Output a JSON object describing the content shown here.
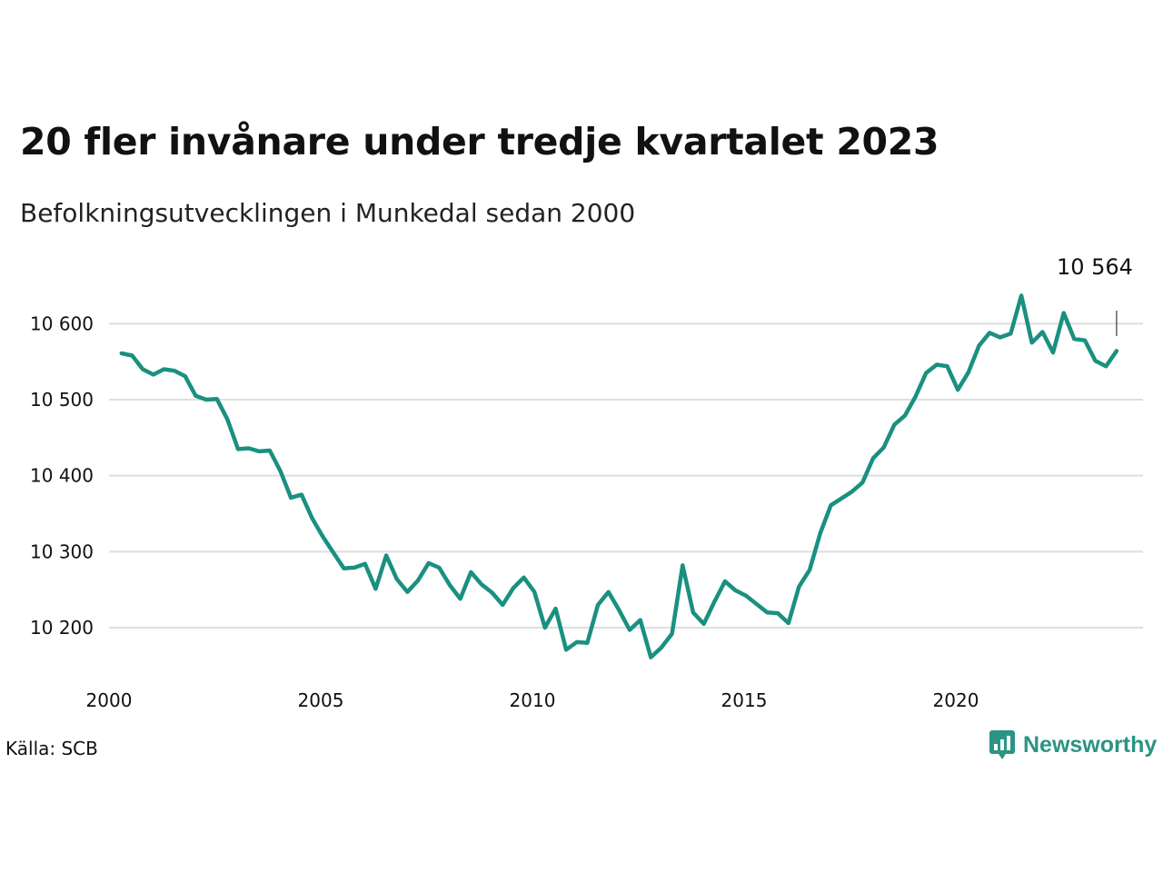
{
  "title": "20 fler invånare under tredje kvartalet 2023",
  "subtitle": "Befolkningsutvecklingen i Munkedal sedan 2000",
  "source": "Källa: SCB",
  "brand": {
    "name": "Newsworthy",
    "icon": "newsworthy-logo-icon",
    "color": "#2b9484"
  },
  "chart_data": {
    "type": "line",
    "color": "#1a9080",
    "grid": true,
    "ylim": [
      10140,
      10650
    ],
    "xlim": [
      2000,
      2024
    ],
    "yticks": [
      10200,
      10300,
      10400,
      10500,
      10600
    ],
    "ytick_labels": [
      "10 200",
      "10 300",
      "10 400",
      "10 500",
      "10 600"
    ],
    "xticks": [
      2000,
      2005,
      2010,
      2015,
      2020
    ],
    "xtick_labels": [
      "2000",
      "2005",
      "2010",
      "2015",
      "2020"
    ],
    "last_value_label": "10 564",
    "x": [
      2000.125,
      2000.375,
      2000.625,
      2000.875,
      2001.125,
      2001.375,
      2001.625,
      2001.875,
      2002.125,
      2002.375,
      2002.625,
      2002.875,
      2003.125,
      2003.375,
      2003.625,
      2003.875,
      2004.125,
      2004.375,
      2004.625,
      2004.875,
      2005.125,
      2005.375,
      2005.625,
      2005.875,
      2006.125,
      2006.375,
      2006.625,
      2006.875,
      2007.125,
      2007.375,
      2007.625,
      2007.875,
      2008.125,
      2008.375,
      2008.625,
      2008.875,
      2009.125,
      2009.375,
      2009.625,
      2009.875,
      2010.125,
      2010.375,
      2010.625,
      2010.875,
      2011.125,
      2011.375,
      2011.625,
      2011.875,
      2012.125,
      2012.375,
      2012.625,
      2012.875,
      2013.125,
      2013.375,
      2013.625,
      2013.875,
      2014.125,
      2014.375,
      2014.625,
      2014.875,
      2015.125,
      2015.375,
      2015.625,
      2015.875,
      2016.125,
      2016.375,
      2016.625,
      2016.875,
      2017.125,
      2017.375,
      2017.625,
      2017.875,
      2018.125,
      2018.375,
      2018.625,
      2018.875,
      2019.125,
      2019.375,
      2019.625,
      2019.875,
      2020.125,
      2020.375,
      2020.625,
      2020.875,
      2021.125,
      2021.375,
      2021.625,
      2021.875,
      2022.125,
      2022.375,
      2022.625,
      2022.875,
      2023.125,
      2023.375,
      2023.625
    ],
    "values": [
      10561,
      10558,
      10540,
      10533,
      10540,
      10538,
      10531,
      10505,
      10500,
      10501,
      10474,
      10435,
      10436,
      10432,
      10433,
      10406,
      10371,
      10375,
      10344,
      10320,
      10299,
      10278,
      10279,
      10284,
      10251,
      10295,
      10264,
      10247,
      10262,
      10285,
      10279,
      10256,
      10238,
      10273,
      10257,
      10246,
      10230,
      10252,
      10266,
      10247,
      10200,
      10225,
      10171,
      10181,
      10180,
      10230,
      10247,
      10223,
      10197,
      10210,
      10161,
      10174,
      10192,
      10282,
      10220,
      10205,
      10234,
      10261,
      10249,
      10242,
      10231,
      10220,
      10219,
      10206,
      10254,
      10276,
      10324,
      10361,
      10370,
      10379,
      10391,
      10423,
      10437,
      10467,
      10479,
      10504,
      10535,
      10546,
      10544,
      10513,
      10536,
      10571,
      10588,
      10582,
      10587,
      10637,
      10575,
      10589,
      10562,
      10614,
      10580,
      10578,
      10551,
      10544,
      10564
    ]
  }
}
